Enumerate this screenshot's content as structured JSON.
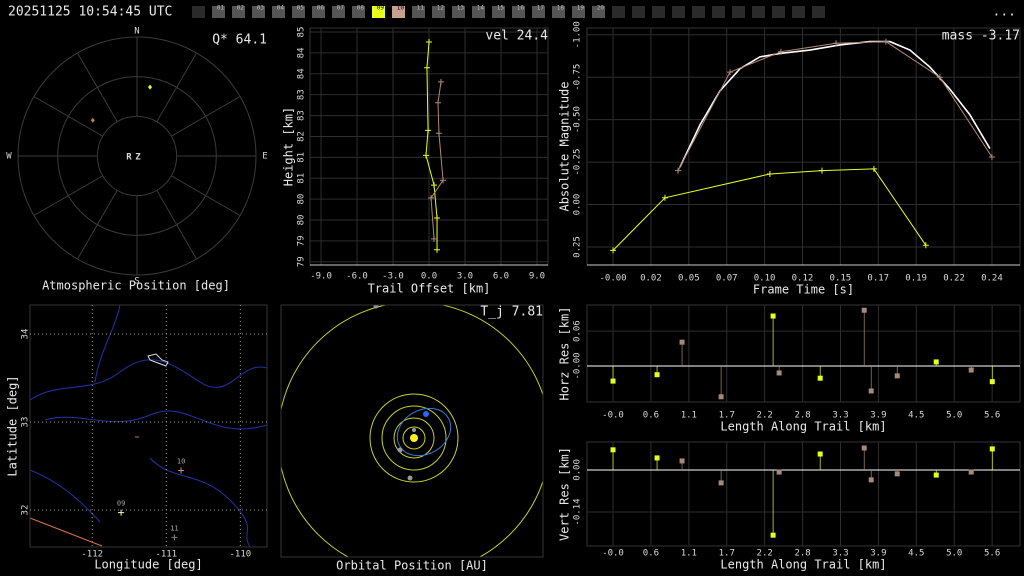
{
  "header": {
    "timestamp": "20251125 10:54:45 UTC",
    "menu": "...",
    "cameras": [
      {
        "label": "01",
        "color": "#555555"
      },
      {
        "label": "02",
        "color": "#555555"
      },
      {
        "label": "03",
        "color": "#555555"
      },
      {
        "label": "04",
        "color": "#555555"
      },
      {
        "label": "05",
        "color": "#555555"
      },
      {
        "label": "06",
        "color": "#555555"
      },
      {
        "label": "07",
        "color": "#555555"
      },
      {
        "label": "08",
        "color": "#555555"
      },
      {
        "label": "09",
        "color": "#e8ff1e"
      },
      {
        "label": "10",
        "color": "#c8a090"
      },
      {
        "label": "11",
        "color": "#555555"
      },
      {
        "label": "12",
        "color": "#555555"
      },
      {
        "label": "13",
        "color": "#555555"
      },
      {
        "label": "14",
        "color": "#555555"
      },
      {
        "label": "15",
        "color": "#555555"
      },
      {
        "label": "16",
        "color": "#555555"
      },
      {
        "label": "17",
        "color": "#555555"
      },
      {
        "label": "18",
        "color": "#555555"
      },
      {
        "label": "19",
        "color": "#555555"
      },
      {
        "label": "20",
        "color": "#555555"
      }
    ]
  },
  "chart_data": [
    {
      "type": "polar",
      "xlabel": "Atmospheric Position [deg]",
      "annotation": "Q* 64.1",
      "directions": [
        "N",
        "E",
        "S",
        "W"
      ],
      "center_labels": [
        "R",
        "Z"
      ],
      "rlim": [
        0,
        90
      ],
      "series": [
        {
          "color": "#e8ff1e",
          "azimuth": [
            10.7
          ],
          "zenith": [
            53
          ]
        },
        {
          "color": "#c07850",
          "azimuth": [
            309
          ],
          "zenith": [
            43
          ]
        }
      ]
    },
    {
      "type": "line",
      "annotation": "vel 24.4",
      "xlabel": "Trail Offset [km]",
      "ylabel": "Height [km]",
      "grid": true,
      "xlim": [
        -9.92,
        9.92
      ],
      "xticks": [
        {
          "value": -9,
          "label": "-9.0"
        },
        {
          "value": -6,
          "label": "-6.0"
        },
        {
          "value": -3,
          "label": "-3.0"
        },
        {
          "value": 0,
          "label": "0.0"
        },
        {
          "value": 3,
          "label": "3.0"
        },
        {
          "value": 6,
          "label": "6.0"
        },
        {
          "value": 9,
          "label": "9.0"
        }
      ],
      "ylim": [
        78.8,
        84.7
      ],
      "yticks": [
        {
          "value": 84.6,
          "label": "85"
        },
        {
          "value": 84.08,
          "label": "84"
        },
        {
          "value": 83.56,
          "label": "84"
        },
        {
          "value": 83.04,
          "label": "83"
        },
        {
          "value": 82.52,
          "label": "83"
        },
        82,
        {
          "value": 81.48,
          "label": "81"
        },
        {
          "value": 80.96,
          "label": "81"
        },
        {
          "value": 80.44,
          "label": "80"
        },
        {
          "value": 79.92,
          "label": "80"
        },
        {
          "value": 79.4,
          "label": "79"
        },
        {
          "value": 78.88,
          "label": "79"
        }
      ],
      "series": [
        {
          "color": "#e8ff1e",
          "markers": true,
          "x": [
            0,
            -0.17,
            -0.08,
            -0.25,
            0.42,
            0.67,
            0.67
          ],
          "values": [
            84.35,
            83.71,
            82.15,
            81.53,
            80.79,
            79.97,
            79.18
          ]
        },
        {
          "color": "#b08878",
          "markers": true,
          "x": [
            1.0,
            0.75,
            0.83,
            1.17,
            0.17,
            0.42
          ],
          "values": [
            83.36,
            82.84,
            82.08,
            80.91,
            80.47,
            79.45
          ]
        }
      ]
    },
    {
      "type": "line",
      "annotation": "mass -3.17",
      "xlabel": "Frame Time [s]",
      "ylabel": "Absolute Magnitude",
      "grid": true,
      "xlim": [
        -0.0167,
        0.261
      ],
      "xticks": [
        {
          "value": 0,
          "label": "-0.00"
        },
        {
          "value": 0.0243,
          "label": "0.02"
        },
        {
          "value": 0.0486,
          "label": "0.05"
        },
        {
          "value": 0.0729,
          "label": "0.07"
        },
        {
          "value": 0.0972,
          "label": "0.10"
        },
        {
          "value": 0.1215,
          "label": "0.12"
        },
        {
          "value": 0.1458,
          "label": "0.15"
        },
        {
          "value": 0.1701,
          "label": "0.17"
        },
        {
          "value": 0.1944,
          "label": "0.19"
        },
        {
          "value": 0.2187,
          "label": "0.22"
        },
        {
          "value": 0.243,
          "label": "0.24"
        }
      ],
      "ylim": [
        0.356,
        -1.04
      ],
      "yticks": [
        {
          "value": -1,
          "label": "-1.00"
        },
        -0.75,
        {
          "value": -0.5,
          "label": "-0.50"
        },
        -0.25,
        {
          "value": 0,
          "label": "0.00"
        },
        0.25
      ],
      "series": [
        {
          "color": "#ffffff",
          "markers": false,
          "x": [
            0.0429,
            0.0558,
            0.0686,
            0.0814,
            0.0942,
            0.1071,
            0.1263,
            0.1455,
            0.1647,
            0.1776,
            0.1904,
            0.2032,
            0.216,
            0.2288,
            0.2417
          ],
          "values": [
            -0.22,
            -0.47,
            -0.67,
            -0.8,
            -0.87,
            -0.89,
            -0.91,
            -0.94,
            -0.96,
            -0.96,
            -0.91,
            -0.81,
            -0.68,
            -0.53,
            -0.33
          ]
        },
        {
          "color": "#b08878",
          "markers": true,
          "x": [
            0.0417,
            0.075,
            0.1077,
            0.143,
            0.175,
            0.2096,
            0.243
          ],
          "values": [
            -0.2,
            -0.78,
            -0.9,
            -0.95,
            -0.96,
            -0.75,
            -0.28
          ]
        },
        {
          "color": "#e8ff1e",
          "markers": true,
          "x": [
            0,
            0.0333,
            0.1006,
            0.134,
            0.1673,
            0.2006
          ],
          "values": [
            0.27,
            -0.04,
            -0.18,
            -0.2,
            -0.21,
            0.24
          ]
        }
      ]
    },
    {
      "type": "map",
      "xlabel": "Longitude [deg]",
      "ylabel": "Latitude [deg]",
      "grid": true,
      "grid_style": "dotted",
      "xlim": [
        -112.84,
        -109.64
      ],
      "xticks": [
        -112,
        -111,
        -110
      ],
      "ylim": [
        31.58,
        34.33
      ],
      "yticks": [
        32,
        33,
        34
      ],
      "stations": [
        {
          "label": "09",
          "color": "#f4ffc0",
          "lon": -111.61,
          "lat": 31.97
        },
        {
          "label": "10",
          "color": "#d08a6a",
          "lon": -110.8,
          "lat": 32.45
        },
        {
          "label": "11",
          "color": "#808080",
          "lon": -110.89,
          "lat": 31.69
        }
      ]
    },
    {
      "type": "orbit",
      "xlabel": "Orbital Position [AU]",
      "annotation": "T_j 7.81"
    },
    {
      "type": "stem",
      "xlabel": "Length Along Trail [km]",
      "ylabel": "Horz Res [km]",
      "grid": true,
      "xlim": [
        -0.383,
        5.99
      ],
      "xticks": [
        {
          "value": 0,
          "label": "-0.0"
        },
        {
          "value": 0.558,
          "label": "0.6"
        },
        {
          "value": 1.116,
          "label": "1.1"
        },
        {
          "value": 1.674,
          "label": "1.7"
        },
        {
          "value": 2.232,
          "label": "2.2"
        },
        {
          "value": 2.79,
          "label": "2.8"
        },
        {
          "value": 3.348,
          "label": "3.3"
        },
        {
          "value": 3.906,
          "label": "3.9"
        },
        {
          "value": 4.464,
          "label": "4.5"
        },
        {
          "value": 5.022,
          "label": "5.0"
        },
        {
          "value": 5.58,
          "label": "5.6"
        }
      ],
      "ylim": [
        -0.062,
        0.105
      ],
      "yticks": [
        0.06,
        {
          "value": 0,
          "label": "-0.00"
        }
      ],
      "series": [
        {
          "color": "#e8ff1e",
          "x": [
            0,
            0.648,
            2.356,
            3.049,
            4.757,
            5.582
          ],
          "values": [
            -0.026,
            -0.015,
            0.086,
            -0.021,
            0.007,
            -0.027
          ]
        },
        {
          "color": "#a88878",
          "x": [
            1.016,
            1.591,
            2.445,
            3.697,
            3.8,
            4.183,
            5.272
          ],
          "values": [
            0.041,
            -0.053,
            -0.012,
            0.096,
            -0.043,
            -0.017,
            -0.007
          ]
        }
      ]
    },
    {
      "type": "stem",
      "xlabel": "Length Along Trail [km]",
      "ylabel": "Vert Res [km]",
      "grid": true,
      "xlim": [
        -0.383,
        5.99
      ],
      "xticks": [
        {
          "value": 0,
          "label": "-0.0"
        },
        {
          "value": 0.558,
          "label": "0.6"
        },
        {
          "value": 1.116,
          "label": "1.1"
        },
        {
          "value": 1.674,
          "label": "1.7"
        },
        {
          "value": 2.232,
          "label": "2.2"
        },
        {
          "value": 2.79,
          "label": "2.8"
        },
        {
          "value": 3.348,
          "label": "3.3"
        },
        {
          "value": 3.906,
          "label": "3.9"
        },
        {
          "value": 4.464,
          "label": "4.5"
        },
        {
          "value": 5.022,
          "label": "5.0"
        },
        {
          "value": 5.58,
          "label": "5.6"
        }
      ],
      "ylim": [
        -0.253,
        0.093
      ],
      "yticks": [
        {
          "value": 0,
          "label": "0.00"
        },
        -0.14
      ],
      "series": [
        {
          "color": "#e8ff1e",
          "x": [
            0,
            0.648,
            2.356,
            3.049,
            4.757,
            5.582
          ],
          "values": [
            0.067,
            0.04,
            -0.217,
            0.053,
            -0.017,
            0.07
          ]
        },
        {
          "color": "#a88878",
          "x": [
            1.016,
            1.591,
            2.445,
            3.697,
            3.8,
            4.183,
            5.272
          ],
          "values": [
            0.03,
            -0.043,
            -0.007,
            0.073,
            -0.033,
            -0.013,
            -0.007
          ]
        }
      ]
    }
  ]
}
